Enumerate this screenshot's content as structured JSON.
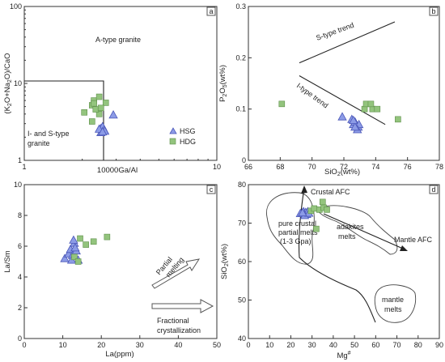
{
  "chart_data": [
    {
      "panel": "a",
      "type": "scatter",
      "xlabel": "10000Ga/Al",
      "ylabel": "(K2O+Na2O)/CaO",
      "ylabel_parts": {
        "a": "(K",
        "b": "2",
        "c": "O+Na",
        "d": "2",
        "e": "O)/CaO"
      },
      "x_scale": "log",
      "y_scale": "log",
      "xlim": [
        1,
        10
      ],
      "ylim": [
        1,
        100
      ],
      "x_ticks": [
        "1",
        "10"
      ],
      "y_ticks": [
        "1",
        "10",
        "100"
      ],
      "regions": [
        {
          "label": "A-type granite"
        },
        {
          "label": "I- and S-type granite",
          "lines": [
            "I- and S-type",
            "granite"
          ]
        }
      ],
      "legend": {
        "position": "bottom-right",
        "entries": [
          {
            "marker": "triangle",
            "label": "HSG"
          },
          {
            "marker": "square",
            "label": "HDG"
          }
        ]
      },
      "series": [
        {
          "name": "HSG",
          "marker": "triangle",
          "points": [
            [
              2.5,
              2.6
            ],
            [
              2.55,
              2.75
            ],
            [
              2.6,
              2.5
            ],
            [
              2.5,
              2.3
            ],
            [
              2.62,
              2.4
            ],
            [
              2.45,
              2.55
            ],
            [
              2.9,
              3.9
            ],
            [
              2.55,
              2.35
            ]
          ]
        },
        {
          "name": "HDG",
          "marker": "square",
          "points": [
            [
              2.05,
              4.2
            ],
            [
              2.25,
              3.2
            ],
            [
              2.25,
              5.2
            ],
            [
              2.45,
              4.0
            ],
            [
              2.3,
              6.0
            ],
            [
              2.3,
              5.5
            ],
            [
              2.35,
              4.6
            ],
            [
              2.65,
              5.6
            ],
            [
              2.5,
              4.8
            ],
            [
              2.45,
              6.7
            ]
          ]
        }
      ]
    },
    {
      "panel": "b",
      "type": "scatter",
      "xlabel": "SiO2(wt%)",
      "xlabel_parts": {
        "a": "SiO",
        "b": "2",
        "c": "(wt%)"
      },
      "ylabel": "P2O5(wt%)",
      "ylabel_parts": {
        "a": "P",
        "b": "2",
        "c": "O",
        "d": "5",
        "e": "(wt%)"
      },
      "xlim": [
        66,
        78
      ],
      "ylim": [
        0,
        0.3
      ],
      "x_ticks": [
        "66",
        "68",
        "70",
        "72",
        "74",
        "76",
        "78"
      ],
      "y_ticks": [
        "0",
        "0.1",
        "0.2",
        "0.3"
      ],
      "trends": [
        {
          "label": "S-type trend",
          "from": [
            69.2,
            0.19
          ],
          "to": [
            75.2,
            0.27
          ]
        },
        {
          "label": "I-type trend",
          "from": [
            69.2,
            0.165
          ],
          "to": [
            74.6,
            0.07
          ]
        }
      ],
      "series": [
        {
          "name": "HSG",
          "marker": "triangle",
          "points": [
            [
              71.9,
              0.085
            ],
            [
              72.5,
              0.08
            ],
            [
              72.6,
              0.07
            ],
            [
              72.7,
              0.075
            ],
            [
              72.9,
              0.065
            ],
            [
              72.95,
              0.07
            ],
            [
              72.85,
              0.06
            ],
            [
              72.7,
              0.065
            ],
            [
              72.6,
              0.078
            ]
          ]
        },
        {
          "name": "HDG",
          "marker": "square",
          "points": [
            [
              68.1,
              0.11
            ],
            [
              73.3,
              0.1
            ],
            [
              73.4,
              0.11
            ],
            [
              73.8,
              0.1
            ],
            [
              73.7,
              0.11
            ],
            [
              74.1,
              0.1
            ],
            [
              75.4,
              0.08
            ]
          ]
        }
      ]
    },
    {
      "panel": "c",
      "type": "scatter",
      "xlabel": "La(ppm)",
      "ylabel": "La/Sm",
      "xlim": [
        0,
        50
      ],
      "ylim": [
        0,
        10
      ],
      "x_ticks": [
        "0",
        "10",
        "20",
        "30",
        "40",
        "50"
      ],
      "y_ticks": [
        "0",
        "2",
        "4",
        "6",
        "8",
        "10"
      ],
      "annotations": [
        {
          "label": "Partial melting",
          "lines": [
            "Partial",
            "melting"
          ]
        },
        {
          "label": "Fractional crystallization",
          "lines": [
            "Fractional",
            "crystallization"
          ]
        }
      ],
      "series": [
        {
          "name": "HSG",
          "marker": "triangle",
          "points": [
            [
              10.5,
              5.2
            ],
            [
              11.5,
              5.5
            ],
            [
              12.0,
              5.8
            ],
            [
              12.5,
              5.4
            ],
            [
              13.0,
              6.2
            ],
            [
              13.5,
              5.7
            ],
            [
              12.8,
              6.4
            ],
            [
              14.0,
              5.1
            ],
            [
              13.2,
              5.9
            ],
            [
              12.3,
              5.1
            ]
          ]
        },
        {
          "name": "HDG",
          "marker": "square",
          "points": [
            [
              13.0,
              5.3
            ],
            [
              14.0,
              5.0
            ],
            [
              14.5,
              6.5
            ],
            [
              16.0,
              6.1
            ],
            [
              18.0,
              6.3
            ],
            [
              21.5,
              6.6
            ]
          ]
        }
      ]
    },
    {
      "panel": "d",
      "type": "scatter",
      "xlabel": "Mg#",
      "xlabel_parts": {
        "a": "Mg",
        "b": "#"
      },
      "ylabel": "SiO2(wt%)",
      "ylabel_parts": {
        "a": "SiO",
        "b": "2",
        "c": "(wt%)"
      },
      "xlim": [
        0,
        90
      ],
      "ylim": [
        40,
        80
      ],
      "x_ticks": [
        "0",
        "10",
        "20",
        "30",
        "40",
        "50",
        "60",
        "70",
        "80",
        "90"
      ],
      "y_ticks": [
        "40",
        "50",
        "60",
        "70",
        "80"
      ],
      "fields": [
        {
          "label": "pure crustal partial melts (1-3 Gpa)",
          "lines": [
            "pure crustal",
            "partial melts",
            "(1-3 Gpa)"
          ]
        },
        {
          "label": "adakites melts",
          "lines": [
            "adakites",
            "melts"
          ]
        },
        {
          "label": "mantle melts",
          "lines": [
            "mantle",
            "melts"
          ]
        }
      ],
      "trends": [
        {
          "label": "Crustal AFC"
        },
        {
          "label": "Mantle AFC"
        }
      ],
      "series": [
        {
          "name": "HSG",
          "marker": "triangle",
          "points": [
            [
              24.5,
              72.5
            ],
            [
              26.0,
              73.0
            ],
            [
              27.0,
              72.8
            ],
            [
              27.5,
              72.3
            ],
            [
              28.0,
              73.0
            ],
            [
              26.5,
              72.0
            ],
            [
              28.5,
              72.6
            ],
            [
              25.5,
              72.7
            ]
          ]
        },
        {
          "name": "HDG",
          "marker": "square",
          "points": [
            [
              29.5,
              73.2
            ],
            [
              31.0,
              73.8
            ],
            [
              32.0,
              68.5
            ],
            [
              33.5,
              73.5
            ],
            [
              35.0,
              75.5
            ],
            [
              35.5,
              74.0
            ],
            [
              37.0,
              73.5
            ]
          ]
        }
      ]
    }
  ]
}
